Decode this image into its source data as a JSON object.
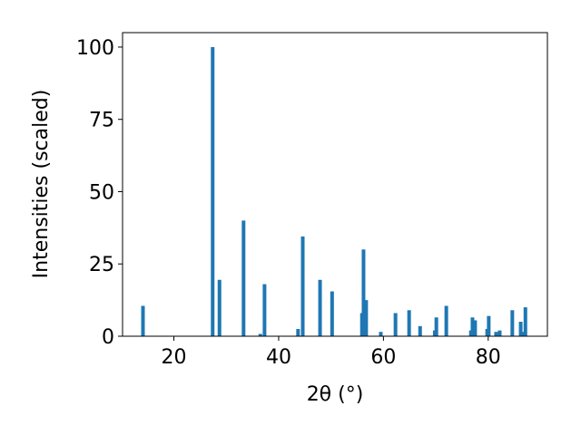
{
  "chart_data": {
    "type": "bar",
    "xlabel": "2θ (°)",
    "ylabel": "Intensities (scaled)",
    "x": [
      14.1,
      27.4,
      28.7,
      33.3,
      36.5,
      37.3,
      43.7,
      44.6,
      47.9,
      50.2,
      55.9,
      56.2,
      56.7,
      59.5,
      62.3,
      64.9,
      67.0,
      69.8,
      70.1,
      72.0,
      76.7,
      77.0,
      77.5,
      79.8,
      80.1,
      81.5,
      82.2,
      84.6,
      86.2,
      86.6,
      87.1
    ],
    "values": [
      10.5,
      100,
      19.5,
      40,
      0.8,
      18,
      2.5,
      34.5,
      19.5,
      15.5,
      8,
      30,
      12.5,
      1.5,
      8,
      9,
      3.5,
      2,
      6.5,
      10.5,
      2,
      6.5,
      5.5,
      2.5,
      7,
      1.5,
      2,
      9,
      5,
      1.5,
      10
    ],
    "color": "#1f77b4",
    "xlim": [
      10.2,
      91.3
    ],
    "xticks": [
      20,
      40,
      60,
      80
    ],
    "ylim": [
      0,
      105
    ],
    "yticks": [
      0,
      25,
      50,
      75,
      100
    ]
  }
}
